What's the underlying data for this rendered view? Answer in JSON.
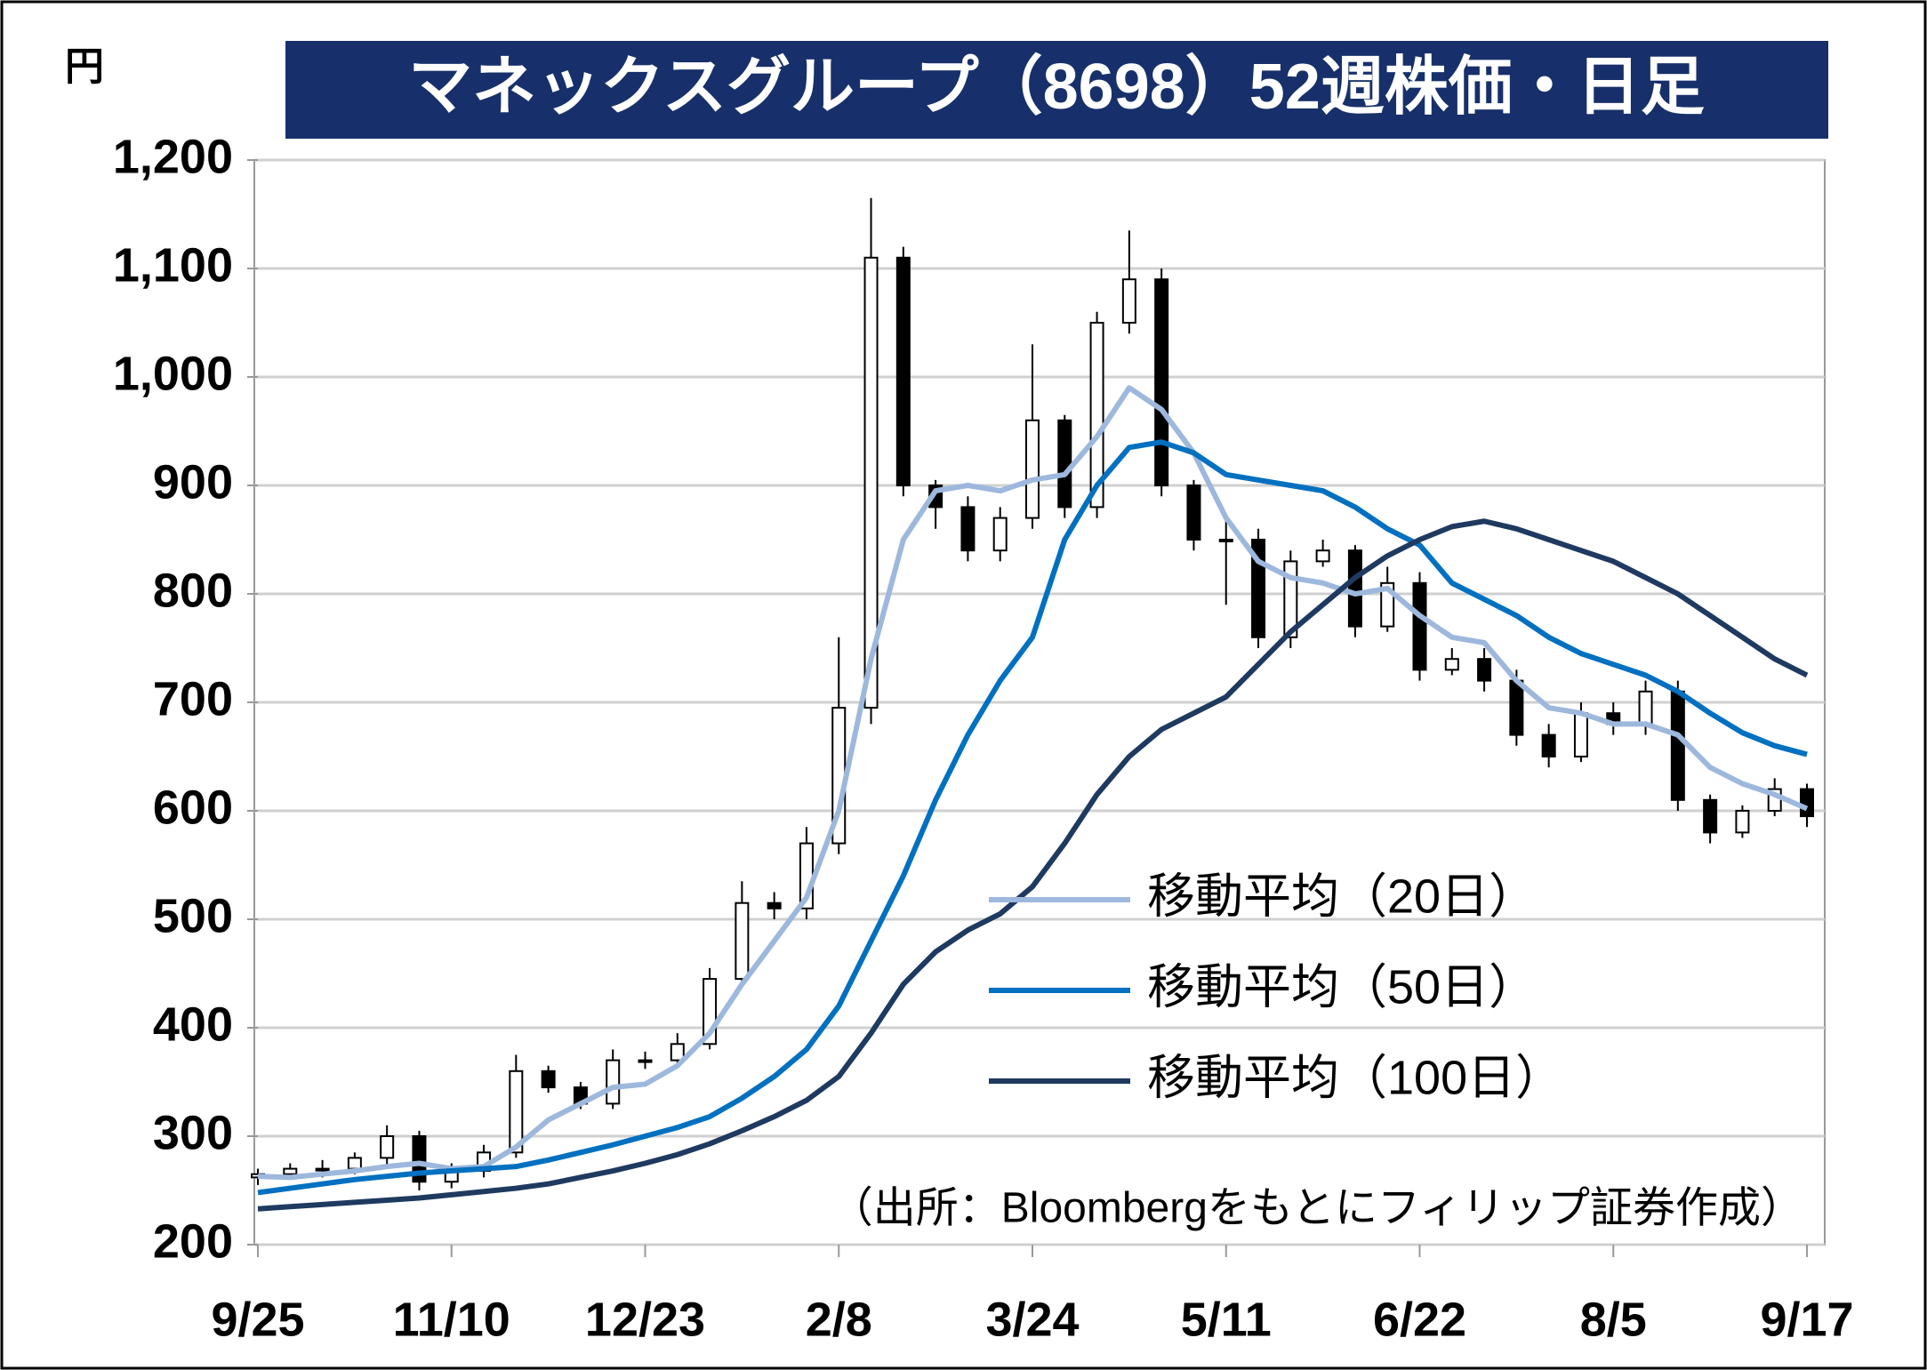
{
  "chart_data": {
    "type": "candlestick",
    "title": "マネックスグループ（8698）52週株価・日足",
    "y_unit": "円",
    "source": "（出所：Bloombergをもとにフィリップ証券作成）",
    "categories": [
      "9/25",
      null,
      null,
      null,
      null,
      null,
      "11/10",
      null,
      null,
      null,
      null,
      null,
      "12/23",
      null,
      null,
      null,
      null,
      null,
      "2/8",
      null,
      null,
      null,
      null,
      null,
      "3/24",
      null,
      null,
      null,
      null,
      null,
      "5/11",
      null,
      null,
      null,
      null,
      null,
      "6/22",
      null,
      null,
      null,
      null,
      null,
      "8/5",
      null,
      null,
      null,
      null,
      null,
      "9/17"
    ],
    "open": [
      262,
      265,
      270,
      270,
      280,
      300,
      258,
      268,
      285,
      360,
      345,
      330,
      370,
      370,
      385,
      445,
      515,
      510,
      570,
      695,
      1110,
      900,
      880,
      840,
      870,
      960,
      880,
      1050,
      1090,
      900,
      850,
      850,
      760,
      830,
      840,
      770,
      810,
      730,
      740,
      720,
      670,
      650,
      690,
      680,
      710,
      610,
      580,
      600,
      620
    ],
    "high": [
      270,
      275,
      278,
      285,
      310,
      305,
      275,
      292,
      375,
      365,
      350,
      380,
      378,
      395,
      455,
      535,
      525,
      585,
      760,
      1165,
      1120,
      905,
      890,
      880,
      1030,
      965,
      1060,
      1135,
      1100,
      905,
      870,
      860,
      840,
      850,
      845,
      825,
      820,
      750,
      750,
      730,
      680,
      700,
      700,
      720,
      720,
      615,
      605,
      630,
      625
    ],
    "low": [
      255,
      260,
      262,
      265,
      272,
      250,
      252,
      262,
      280,
      340,
      325,
      325,
      362,
      365,
      380,
      440,
      500,
      500,
      560,
      680,
      890,
      860,
      830,
      830,
      860,
      870,
      870,
      1040,
      890,
      840,
      790,
      750,
      750,
      825,
      760,
      765,
      720,
      725,
      710,
      660,
      640,
      645,
      670,
      670,
      600,
      570,
      575,
      595,
      585
    ],
    "close": [
      265,
      270,
      270,
      280,
      300,
      258,
      268,
      285,
      360,
      345,
      330,
      370,
      370,
      385,
      445,
      515,
      510,
      570,
      695,
      1110,
      900,
      880,
      840,
      870,
      960,
      880,
      1050,
      1090,
      900,
      850,
      850,
      760,
      830,
      840,
      770,
      810,
      730,
      740,
      720,
      670,
      650,
      690,
      680,
      710,
      610,
      580,
      600,
      620,
      595
    ],
    "series": [
      {
        "name": "移動平均（20日）",
        "color": "#9db8dc",
        "values": [
          263,
          262,
          265,
          268,
          272,
          275,
          270,
          272,
          290,
          315,
          330,
          345,
          348,
          365,
          395,
          440,
          480,
          520,
          600,
          740,
          850,
          895,
          900,
          895,
          905,
          910,
          945,
          990,
          970,
          930,
          870,
          830,
          815,
          810,
          800,
          805,
          780,
          760,
          755,
          720,
          695,
          690,
          680,
          680,
          670,
          640,
          625,
          615,
          602
        ]
      },
      {
        "name": "移動平均（50日）",
        "color": "#0070c0",
        "values": [
          248,
          252,
          256,
          260,
          263,
          266,
          268,
          270,
          272,
          278,
          285,
          292,
          300,
          308,
          318,
          335,
          355,
          380,
          420,
          480,
          540,
          610,
          670,
          720,
          760,
          850,
          900,
          935,
          940,
          930,
          910,
          905,
          900,
          895,
          880,
          860,
          845,
          810,
          795,
          780,
          760,
          745,
          735,
          725,
          710,
          690,
          672,
          660,
          652
        ]
      },
      {
        "name": "移動平均（100日）",
        "color": "#1f3a60",
        "values": [
          233,
          235,
          237,
          239,
          241,
          243,
          246,
          249,
          252,
          256,
          262,
          268,
          275,
          283,
          293,
          305,
          318,
          333,
          355,
          395,
          440,
          470,
          490,
          505,
          530,
          570,
          615,
          650,
          675,
          690,
          705,
          735,
          765,
          790,
          815,
          835,
          850,
          862,
          867,
          860,
          850,
          840,
          830,
          815,
          800,
          780,
          760,
          740,
          725
        ]
      }
    ],
    "ylim": [
      200,
      1200
    ],
    "yticks": [
      200,
      300,
      400,
      500,
      600,
      700,
      800,
      900,
      {
        "value": 1000,
        "label": "1,000"
      },
      {
        "value": 1100,
        "label": "1,100"
      },
      {
        "value": 1200,
        "label": "1,200"
      }
    ],
    "grid": true,
    "up_color": "#ffffff",
    "down_color": "#000000"
  }
}
